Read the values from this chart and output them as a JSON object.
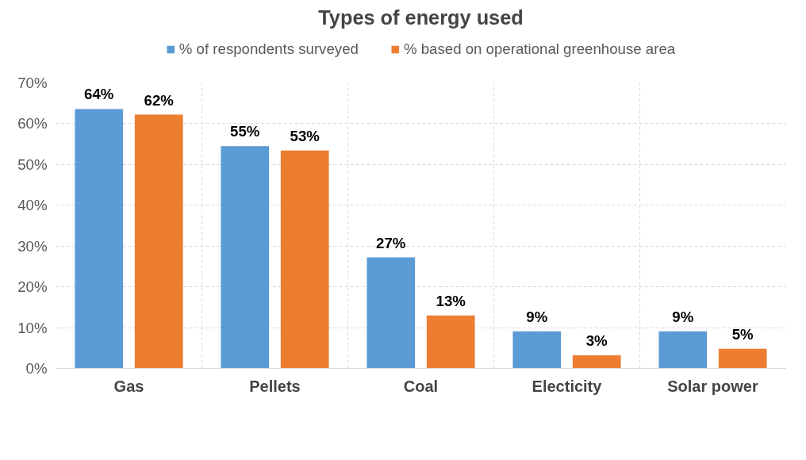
{
  "chart_data": {
    "type": "bar",
    "title": "Types of energy used",
    "categories": [
      "Gas",
      "Pellets",
      "Coal",
      "Electicity",
      "Solar power"
    ],
    "series": [
      {
        "name": "% of respondents surveyed",
        "color": "#5b9bd5",
        "values": [
          63.6,
          54.5,
          27.2,
          9.1,
          9.1
        ],
        "value_labels": [
          "64%",
          "55%",
          "27%",
          "9%",
          "9%"
        ]
      },
      {
        "name": "% based on operational greenhouse area",
        "color": "#ed7d31",
        "values": [
          62.2,
          53.4,
          13.0,
          3.2,
          4.8
        ],
        "value_labels": [
          "62%",
          "53%",
          "13%",
          "3%",
          "5%"
        ]
      }
    ],
    "ylim": [
      0,
      70
    ],
    "yticks": [
      {
        "value": 0,
        "label": "0%"
      },
      {
        "value": 10,
        "label": "10%"
      },
      {
        "value": 20,
        "label": "20%"
      },
      {
        "value": 30,
        "label": "30%"
      },
      {
        "value": 40,
        "label": "40%"
      },
      {
        "value": 50,
        "label": "50%"
      },
      {
        "value": 60,
        "label": "60%"
      },
      {
        "value": 70,
        "label": "70%"
      }
    ],
    "grid": true,
    "legend": "top"
  }
}
